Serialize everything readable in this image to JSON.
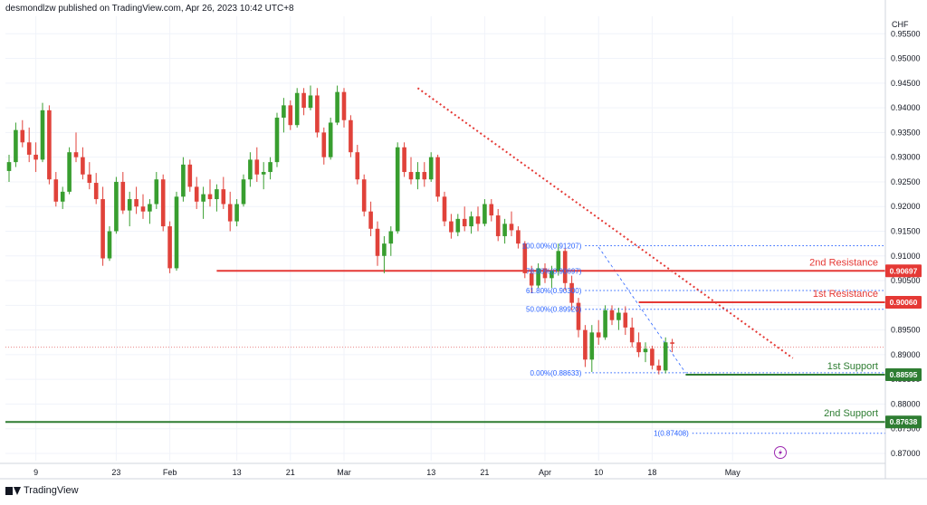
{
  "header": {
    "publisher_line": "desmondlzw published on TradingView.com, Apr 26, 2023 10:42 UTC+8"
  },
  "footer": {
    "brand": "TradingView"
  },
  "colors": {
    "up": "#26a69a",
    "up_green": "#389e2f",
    "down": "#e0423a",
    "resistance": "#e53935",
    "support": "#2e7d32",
    "fib": "#2962ff",
    "trend": "#e53935",
    "grid": "#f0f3fa"
  },
  "chart_data": {
    "type": "candlestick",
    "currency_label": "CHF",
    "ylim": [
      0.87,
      0.96
    ],
    "y_ticks": [
      "0.95500",
      "0.95000",
      "0.94500",
      "0.94000",
      "0.93500",
      "0.93000",
      "0.92500",
      "0.92000",
      "0.91500",
      "0.91000",
      "0.90500",
      "0.90000",
      "0.89500",
      "0.89000",
      "0.88500",
      "0.88000",
      "0.87500",
      "0.87000"
    ],
    "x_ticks": [
      "9",
      "23",
      "Feb",
      "13",
      "21",
      "Mar",
      "13",
      "21",
      "Apr",
      "10",
      "18",
      "May"
    ],
    "x_tick_index": [
      4,
      16,
      24,
      34,
      42,
      50,
      63,
      71,
      80,
      88,
      96,
      108
    ],
    "bar_count": 112,
    "candles": [
      [
        0.9272,
        0.9305,
        0.925,
        0.929
      ],
      [
        0.929,
        0.937,
        0.928,
        0.9355
      ],
      [
        0.9355,
        0.9375,
        0.932,
        0.933
      ],
      [
        0.933,
        0.936,
        0.929,
        0.9305
      ],
      [
        0.9305,
        0.933,
        0.927,
        0.9295
      ],
      [
        0.9295,
        0.941,
        0.929,
        0.9395
      ],
      [
        0.9395,
        0.9405,
        0.9245,
        0.9255
      ],
      [
        0.9255,
        0.927,
        0.92,
        0.921
      ],
      [
        0.921,
        0.924,
        0.9195,
        0.923
      ],
      [
        0.923,
        0.932,
        0.9225,
        0.931
      ],
      [
        0.931,
        0.935,
        0.929,
        0.93
      ],
      [
        0.93,
        0.932,
        0.9255,
        0.9265
      ],
      [
        0.9265,
        0.929,
        0.9235,
        0.9248
      ],
      [
        0.9248,
        0.9268,
        0.9205,
        0.9215
      ],
      [
        0.9215,
        0.924,
        0.908,
        0.9095
      ],
      [
        0.9095,
        0.916,
        0.909,
        0.915
      ],
      [
        0.915,
        0.926,
        0.9145,
        0.925
      ],
      [
        0.925,
        0.927,
        0.9185,
        0.9192
      ],
      [
        0.9192,
        0.923,
        0.916,
        0.9215
      ],
      [
        0.9215,
        0.924,
        0.9185,
        0.92
      ],
      [
        0.92,
        0.9225,
        0.9175,
        0.919
      ],
      [
        0.919,
        0.9215,
        0.9165,
        0.9205
      ],
      [
        0.9205,
        0.927,
        0.9195,
        0.9255
      ],
      [
        0.9255,
        0.9265,
        0.915,
        0.916
      ],
      [
        0.916,
        0.917,
        0.9065,
        0.9075
      ],
      [
        0.9075,
        0.923,
        0.907,
        0.922
      ],
      [
        0.922,
        0.93,
        0.921,
        0.9285
      ],
      [
        0.9285,
        0.9295,
        0.923,
        0.924
      ],
      [
        0.924,
        0.926,
        0.9195,
        0.921
      ],
      [
        0.921,
        0.924,
        0.9175,
        0.9225
      ],
      [
        0.9225,
        0.9255,
        0.92,
        0.9215
      ],
      [
        0.9215,
        0.9245,
        0.919,
        0.9235
      ],
      [
        0.9235,
        0.926,
        0.9195,
        0.9205
      ],
      [
        0.9205,
        0.923,
        0.915,
        0.917
      ],
      [
        0.917,
        0.9215,
        0.916,
        0.9205
      ],
      [
        0.9205,
        0.9265,
        0.92,
        0.9255
      ],
      [
        0.9255,
        0.931,
        0.924,
        0.9295
      ],
      [
        0.9295,
        0.932,
        0.925,
        0.9265
      ],
      [
        0.9265,
        0.929,
        0.9235,
        0.927
      ],
      [
        0.927,
        0.93,
        0.9255,
        0.929
      ],
      [
        0.929,
        0.939,
        0.928,
        0.938
      ],
      [
        0.938,
        0.942,
        0.935,
        0.9405
      ],
      [
        0.9405,
        0.9415,
        0.9355,
        0.9365
      ],
      [
        0.9365,
        0.944,
        0.936,
        0.943
      ],
      [
        0.943,
        0.944,
        0.9385,
        0.94
      ],
      [
        0.94,
        0.9445,
        0.9395,
        0.9425
      ],
      [
        0.9425,
        0.944,
        0.934,
        0.935
      ],
      [
        0.935,
        0.936,
        0.9285,
        0.93
      ],
      [
        0.93,
        0.938,
        0.9295,
        0.937
      ],
      [
        0.937,
        0.9445,
        0.9365,
        0.9432
      ],
      [
        0.9432,
        0.944,
        0.936,
        0.9375
      ],
      [
        0.9375,
        0.9385,
        0.93,
        0.931
      ],
      [
        0.931,
        0.9325,
        0.9245,
        0.9255
      ],
      [
        0.9255,
        0.9265,
        0.918,
        0.919
      ],
      [
        0.919,
        0.921,
        0.914,
        0.9155
      ],
      [
        0.9155,
        0.917,
        0.908,
        0.91
      ],
      [
        0.91,
        0.914,
        0.9065,
        0.9125
      ],
      [
        0.9125,
        0.916,
        0.91,
        0.915
      ],
      [
        0.915,
        0.933,
        0.9145,
        0.932
      ],
      [
        0.932,
        0.933,
        0.926,
        0.927
      ],
      [
        0.927,
        0.93,
        0.9245,
        0.9255
      ],
      [
        0.9255,
        0.929,
        0.9235,
        0.927
      ],
      [
        0.927,
        0.929,
        0.924,
        0.9255
      ],
      [
        0.9255,
        0.931,
        0.925,
        0.93
      ],
      [
        0.93,
        0.9305,
        0.921,
        0.922
      ],
      [
        0.922,
        0.923,
        0.916,
        0.917
      ],
      [
        0.917,
        0.9185,
        0.9135,
        0.9148
      ],
      [
        0.9148,
        0.9185,
        0.914,
        0.9175
      ],
      [
        0.9175,
        0.92,
        0.915,
        0.916
      ],
      [
        0.916,
        0.919,
        0.9145,
        0.918
      ],
      [
        0.918,
        0.92,
        0.915,
        0.9165
      ],
      [
        0.9165,
        0.9215,
        0.916,
        0.9205
      ],
      [
        0.9205,
        0.9215,
        0.917,
        0.9182
      ],
      [
        0.9182,
        0.9195,
        0.913,
        0.914
      ],
      [
        0.914,
        0.9175,
        0.9125,
        0.9165
      ],
      [
        0.9165,
        0.919,
        0.914,
        0.9152
      ],
      [
        0.9152,
        0.916,
        0.9115,
        0.9125
      ],
      [
        0.9125,
        0.913,
        0.9055,
        0.9065
      ],
      [
        0.9065,
        0.908,
        0.9025,
        0.904
      ],
      [
        0.904,
        0.9085,
        0.9035,
        0.9075
      ],
      [
        0.9075,
        0.9085,
        0.9045,
        0.9055
      ],
      [
        0.9055,
        0.908,
        0.9035,
        0.907
      ],
      [
        0.907,
        0.9125,
        0.906,
        0.911
      ],
      [
        0.911,
        0.9115,
        0.903,
        0.9045
      ],
      [
        0.9045,
        0.906,
        0.899,
        0.9005
      ],
      [
        0.9005,
        0.9015,
        0.8935,
        0.895
      ],
      [
        0.895,
        0.896,
        0.8875,
        0.889
      ],
      [
        0.889,
        0.896,
        0.8865,
        0.8945
      ],
      [
        0.8945,
        0.897,
        0.892,
        0.8935
      ],
      [
        0.8935,
        0.9,
        0.893,
        0.899
      ],
      [
        0.899,
        0.9,
        0.896,
        0.897
      ],
      [
        0.897,
        0.8995,
        0.895,
        0.8985
      ],
      [
        0.8985,
        0.8998,
        0.894,
        0.8955
      ],
      [
        0.8955,
        0.8975,
        0.8915,
        0.8925
      ],
      [
        0.8925,
        0.8945,
        0.8895,
        0.8905
      ],
      [
        0.8905,
        0.8925,
        0.8885,
        0.8912
      ],
      [
        0.8912,
        0.8918,
        0.887,
        0.8878
      ],
      [
        0.8878,
        0.889,
        0.886,
        0.8868
      ],
      [
        0.8868,
        0.8935,
        0.8862,
        0.8925
      ],
      [
        0.8925,
        0.8932,
        0.8905,
        0.8922
      ]
    ],
    "horizontal_levels": [
      {
        "name": "2nd Resistance",
        "price_label": "0.90697",
        "value": 0.90697,
        "kind": "resistance"
      },
      {
        "name": "1st Resistance",
        "price_label": "0.90060",
        "value": 0.9006,
        "kind": "resistance"
      },
      {
        "name": "1st Support",
        "price_label": "0.88595",
        "value": 0.88595,
        "kind": "support"
      },
      {
        "name": "2nd Support",
        "price_label": "0.87638",
        "value": 0.87638,
        "kind": "support"
      }
    ],
    "fib_levels": [
      {
        "label": "100.00%(0.91207)",
        "value": 0.91207
      },
      {
        "label": "78.60%(0.90697)",
        "value": 0.90697
      },
      {
        "label": "61.80%(0.90300)",
        "value": 0.903
      },
      {
        "label": "50.00%(0.89920)",
        "value": 0.8992
      },
      {
        "label": "0.00%(0.88633)",
        "value": 0.88633
      },
      {
        "label": "1(0.87408)",
        "value": 0.87408
      }
    ],
    "trendline": {
      "from": [
        61,
        0.944
      ],
      "to": [
        117,
        0.8893
      ],
      "style": "dotted"
    },
    "current_price": 0.8915
  }
}
